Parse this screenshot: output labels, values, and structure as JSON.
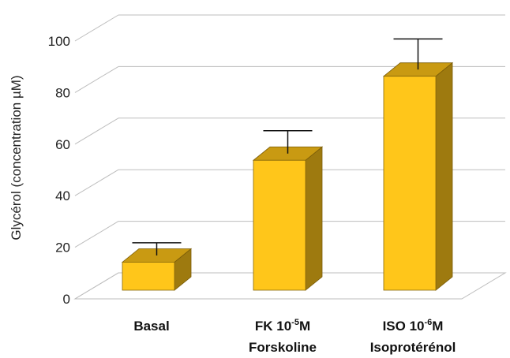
{
  "chart_data": {
    "type": "bar",
    "ylabel": "Glycérol (concentration µM)",
    "ylim": [
      0,
      100
    ],
    "yticks": [
      0,
      20,
      40,
      60,
      80,
      100
    ],
    "grid": true,
    "categories": [
      {
        "line1_pre": "Basal",
        "line1_sup": "",
        "line1_post": "",
        "line2": ""
      },
      {
        "line1_pre": "FK 10",
        "line1_sup": "-5",
        "line1_post": "M",
        "line2": "Forskoline"
      },
      {
        "line1_pre": "ISO 10",
        "line1_sup": "-6",
        "line1_post": "M",
        "line2": "Isoprotérénol"
      }
    ],
    "values": [
      11,
      51,
      84
    ],
    "errors": [
      5,
      9,
      12
    ],
    "colors": {
      "front": "#FFC61A",
      "top": "#C99A12",
      "side": "#9E7A0F",
      "grid": "#BDBDBD",
      "floor": "#FFFFFF"
    }
  }
}
